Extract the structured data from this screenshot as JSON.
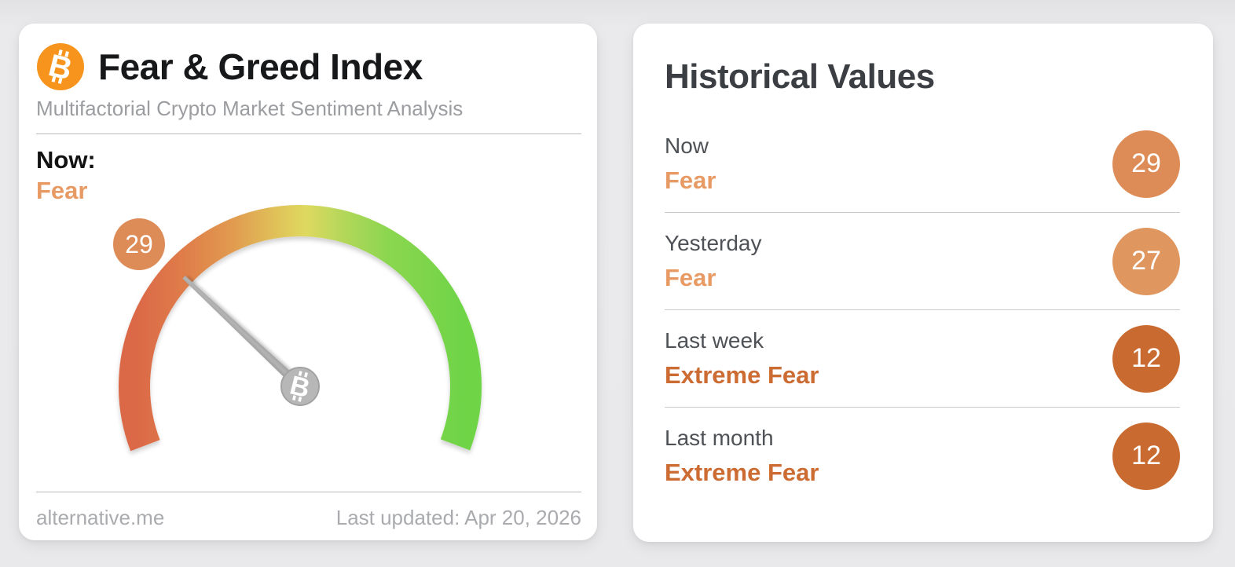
{
  "page": {
    "background_color": "#e9e9eb"
  },
  "icons": {
    "bitcoin_glyph": "B"
  },
  "fear_greed_card": {
    "logo_icon": "bitcoin-icon",
    "logo_color": "#f7941d",
    "title": "Fear & Greed Index",
    "subtitle": "Multifactorial Crypto Market Sentiment Analysis",
    "now_label": "Now:",
    "now_sentiment": "Fear",
    "now_sentiment_color": "#e89a64",
    "gauge_badge_value": "29",
    "gauge_badge_color": "#dd8c57",
    "footer_source": "alternative.me",
    "footer_updated": "Last updated: Apr 20, 2026"
  },
  "historical_card": {
    "title": "Historical Values",
    "rows": [
      {
        "label": "Now",
        "sentiment": "Fear",
        "value": "29",
        "sentiment_color": "#e89a64",
        "badge_color": "#dd8c57"
      },
      {
        "label": "Yesterday",
        "sentiment": "Fear",
        "value": "27",
        "sentiment_color": "#e89a64",
        "badge_color": "#e0975f"
      },
      {
        "label": "Last week",
        "sentiment": "Extreme Fear",
        "value": "12",
        "sentiment_color": "#cc6b32",
        "badge_color": "#c96b30"
      },
      {
        "label": "Last month",
        "sentiment": "Extreme Fear",
        "value": "12",
        "sentiment_color": "#cc6b32",
        "badge_color": "#c96b30"
      }
    ]
  },
  "chart_data": {
    "type": "gauge",
    "title": "Fear & Greed Index",
    "subtitle": "Multifactorial Crypto Market Sentiment Analysis",
    "value": 29,
    "min": 0,
    "max": 100,
    "sentiment": "Fear",
    "last_updated": "Apr 20, 2026",
    "source": "alternative.me",
    "start_angle_deg": 201,
    "sweep_deg": 221.5,
    "needle_color": "#a6a6a6",
    "color_scale": [
      {
        "offset": "0%",
        "color": "#db6947"
      },
      {
        "offset": "14%",
        "color": "#df7c4a"
      },
      {
        "offset": "30%",
        "color": "#e19c50"
      },
      {
        "offset": "44%",
        "color": "#e0c55a"
      },
      {
        "offset": "52%",
        "color": "#ded95f"
      },
      {
        "offset": "63%",
        "color": "#b5d75a"
      },
      {
        "offset": "77%",
        "color": "#8bd650"
      },
      {
        "offset": "100%",
        "color": "#6fd447"
      }
    ],
    "historical": {
      "categories": [
        "Now",
        "Yesterday",
        "Last week",
        "Last month"
      ],
      "values": [
        29,
        27,
        12,
        12
      ],
      "labels": [
        "Fear",
        "Fear",
        "Extreme Fear",
        "Extreme Fear"
      ]
    }
  }
}
